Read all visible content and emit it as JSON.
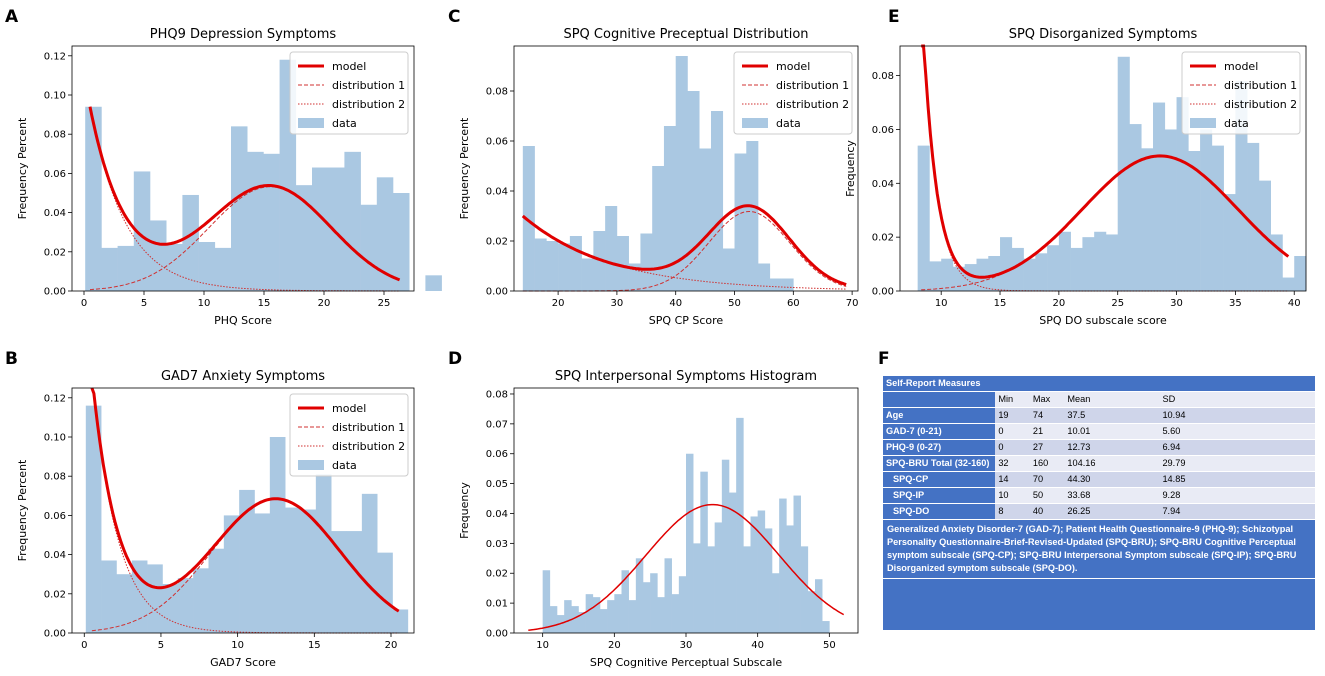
{
  "colors": {
    "model": "#e00000",
    "dist": "#d03030",
    "data": "#aac8e2",
    "table_blue": "#4472c4"
  },
  "chart_data": [
    {
      "id": "A",
      "letter": "A",
      "type": "bar",
      "title": "PHQ9 Depression Symptoms",
      "xlabel": "PHQ Score",
      "ylabel": "Frequency Percent",
      "xlim": [
        -1,
        27.5
      ],
      "ylim": [
        0,
        0.125
      ],
      "xticks": [
        0,
        5,
        10,
        15,
        20,
        25
      ],
      "yticks": [
        0.0,
        0.02,
        0.04,
        0.06,
        0.08,
        0.1,
        0.12
      ],
      "ytick_labels": [
        "0.00",
        "0.02",
        "0.04",
        "0.06",
        "0.08",
        "0.10",
        "0.12"
      ],
      "xtick_labels": [
        "0",
        "5",
        "10",
        "15",
        "20",
        "25"
      ],
      "bin_start": 0.1,
      "bin_width": 1.35,
      "values": [
        0.094,
        0.022,
        0.023,
        0.061,
        0.036,
        0.024,
        0.049,
        0.025,
        0.022,
        0.084,
        0.071,
        0.07,
        0.118,
        0.054,
        0.063,
        0.063,
        0.071,
        0.044,
        0.058,
        0.05,
        0.0,
        0.008
      ],
      "model": {
        "w1": 0.32,
        "lam": 3.0,
        "mu": 15.5,
        "sd": 5.1,
        "w2": 0.68,
        "x0": 0.5,
        "x1": 26.3
      },
      "legend": [
        "model",
        "distribution 1",
        "distribution 2",
        "data"
      ]
    },
    {
      "id": "B",
      "letter": "B",
      "type": "bar",
      "title": "GAD7 Anxiety Symptoms",
      "xlabel": "GAD7 Score",
      "ylabel": "Frequency Percent",
      "xlim": [
        -0.8,
        21.5
      ],
      "ylim": [
        0,
        0.125
      ],
      "xticks": [
        0,
        5,
        10,
        15,
        20
      ],
      "yticks": [
        0.0,
        0.02,
        0.04,
        0.06,
        0.08,
        0.1,
        0.12
      ],
      "ytick_labels": [
        "0.00",
        "0.02",
        "0.04",
        "0.06",
        "0.08",
        "0.10",
        "0.12"
      ],
      "xtick_labels": [
        "0",
        "5",
        "10",
        "15",
        "20"
      ],
      "bin_start": 0.1,
      "bin_width": 1.0,
      "values": [
        0.116,
        0.037,
        0.03,
        0.037,
        0.035,
        0.025,
        0.028,
        0.033,
        0.043,
        0.06,
        0.073,
        0.061,
        0.1,
        0.064,
        0.063,
        0.081,
        0.052,
        0.052,
        0.071,
        0.041,
        0.012
      ],
      "model": {
        "w1": 0.28,
        "lam": 1.7,
        "mu": 12.5,
        "sd": 4.2,
        "w2": 0.72,
        "x0": 0.5,
        "x1": 20.5
      },
      "legend": [
        "model",
        "distribution 1",
        "distribution 2",
        "data"
      ]
    },
    {
      "id": "C",
      "letter": "C",
      "type": "bar",
      "title": "SPQ Cognitive Preceptual Distribution",
      "xlabel": "SPQ CP Score",
      "ylabel": "Frequency Percent",
      "xlim": [
        12.5,
        71
      ],
      "ylim": [
        0,
        0.098
      ],
      "xticks": [
        20,
        30,
        40,
        50,
        60,
        70
      ],
      "yticks": [
        0.0,
        0.02,
        0.04,
        0.06,
        0.08
      ],
      "ytick_labels": [
        "0.00",
        "0.02",
        "0.04",
        "0.06",
        "0.08"
      ],
      "xtick_labels": [
        "20",
        "30",
        "40",
        "50",
        "60",
        "70"
      ],
      "bin_start": 14,
      "bin_width": 2.0,
      "values": [
        0.058,
        0.021,
        0.02,
        0.019,
        0.022,
        0.013,
        0.024,
        0.034,
        0.022,
        0.011,
        0.023,
        0.05,
        0.066,
        0.094,
        0.08,
        0.057,
        0.072,
        0.017,
        0.055,
        0.06,
        0.011,
        0.005,
        0.005
      ],
      "model": {
        "w1": 0.45,
        "lam": 15,
        "mu": 52.5,
        "sd": 6.9,
        "w2": 0.55,
        "x0": 14,
        "x1": 69
      },
      "legend": [
        "model",
        "distribution 1",
        "distribution 2",
        "data"
      ]
    },
    {
      "id": "D",
      "letter": "D",
      "type": "bar",
      "title": "SPQ Interpersonal Symptoms Histogram",
      "xlabel": "SPQ Cognitive Perceptual Subscale",
      "ylabel": "Frequency",
      "xlim": [
        6,
        54
      ],
      "ylim": [
        0,
        0.082
      ],
      "xticks": [
        10,
        20,
        30,
        40,
        50
      ],
      "yticks": [
        0.0,
        0.01,
        0.02,
        0.03,
        0.04,
        0.05,
        0.06,
        0.07,
        0.08
      ],
      "ytick_labels": [
        "0.00",
        "0.01",
        "0.02",
        "0.03",
        "0.04",
        "0.05",
        "0.06",
        "0.07",
        "0.08"
      ],
      "xtick_labels": [
        "10",
        "20",
        "30",
        "40",
        "50"
      ],
      "bin_start": 10,
      "bin_width": 1.0,
      "values": [
        0.021,
        0.009,
        0.006,
        0.011,
        0.009,
        0.007,
        0.013,
        0.012,
        0.008,
        0.011,
        0.013,
        0.021,
        0.011,
        0.025,
        0.017,
        0.02,
        0.012,
        0.025,
        0.013,
        0.019,
        0.06,
        0.03,
        0.054,
        0.029,
        0.037,
        0.058,
        0.047,
        0.072,
        0.029,
        0.039,
        0.041,
        0.035,
        0.02,
        0.045,
        0.036,
        0.046,
        0.029,
        0.014,
        0.018,
        0.004
      ],
      "model": {
        "mu": 33.7,
        "sd": 9.28,
        "x0": 8,
        "x1": 52
      },
      "legend": []
    },
    {
      "id": "E",
      "letter": "E",
      "type": "bar",
      "title": "SPQ Disorganized Symptoms",
      "xlabel": "SPQ DO subscale score",
      "ylabel": "Frequency",
      "xlim": [
        6.5,
        41
      ],
      "ylim": [
        0,
        0.091
      ],
      "xticks": [
        10,
        15,
        20,
        25,
        30,
        35,
        40
      ],
      "yticks": [
        0.0,
        0.02,
        0.04,
        0.06,
        0.08
      ],
      "ytick_labels": [
        "0.00",
        "0.02",
        "0.04",
        "0.06",
        "0.08"
      ],
      "xtick_labels": [
        "10",
        "15",
        "20",
        "25",
        "30",
        "35",
        "40"
      ],
      "bin_start": 8,
      "bin_width": 1.0,
      "values": [
        0.054,
        0.011,
        0.012,
        0.009,
        0.01,
        0.012,
        0.013,
        0.02,
        0.016,
        0.012,
        0.014,
        0.017,
        0.022,
        0.016,
        0.02,
        0.022,
        0.021,
        0.087,
        0.062,
        0.053,
        0.07,
        0.06,
        0.072,
        0.052,
        0.06,
        0.054,
        0.036,
        0.078,
        0.055,
        0.041,
        0.021,
        0.005,
        0.013
      ],
      "model": {
        "w1": 0.17,
        "lam": 1.2,
        "mu": 28.6,
        "sd": 6.6,
        "w2": 0.83,
        "x0": 8.3,
        "x1": 39.5
      },
      "legend": [
        "model",
        "distribution 1",
        "distribution 2",
        "data"
      ]
    }
  ],
  "table": {
    "letter": "F",
    "header": "Self-Report Measures",
    "columns": [
      "Min",
      "Max",
      "Mean",
      "SD"
    ],
    "rows": [
      {
        "label": "Age",
        "indent": false,
        "cells": [
          "19",
          "74",
          "37.5",
          "10.94"
        ]
      },
      {
        "label": "GAD-7 (0-21)",
        "indent": false,
        "cells": [
          "0",
          "21",
          "10.01",
          "5.60"
        ]
      },
      {
        "label": "PHQ-9 (0-27)",
        "indent": false,
        "cells": [
          "0",
          "27",
          "12.73",
          "6.94"
        ]
      },
      {
        "label": "SPQ-BRU Total (32-160)",
        "indent": false,
        "cells": [
          "32",
          "160",
          "104.16",
          "29.79"
        ]
      },
      {
        "label": "SPQ-CP",
        "indent": true,
        "cells": [
          "14",
          "70",
          "44.30",
          "14.85"
        ]
      },
      {
        "label": "SPQ-IP",
        "indent": true,
        "cells": [
          "10",
          "50",
          "33.68",
          "9.28"
        ]
      },
      {
        "label": "SPQ-DO",
        "indent": true,
        "cells": [
          "8",
          "40",
          "26.25",
          "7.94"
        ]
      }
    ],
    "footnote": "Generalized Anxiety Disorder-7 (GAD-7); Patient Health Questionnaire-9 (PHQ-9); Schizotypal Personality Questionnaire-Brief-Revised-Updated (SPQ-BRU); SPQ-BRU Cognitive Perceptual symptom subscale (SPQ-CP); SPQ-BRU Interpersonal Symptom subscale (SPQ-IP); SPQ-BRU Disorganized symptom subscale (SPQ-DO)."
  }
}
